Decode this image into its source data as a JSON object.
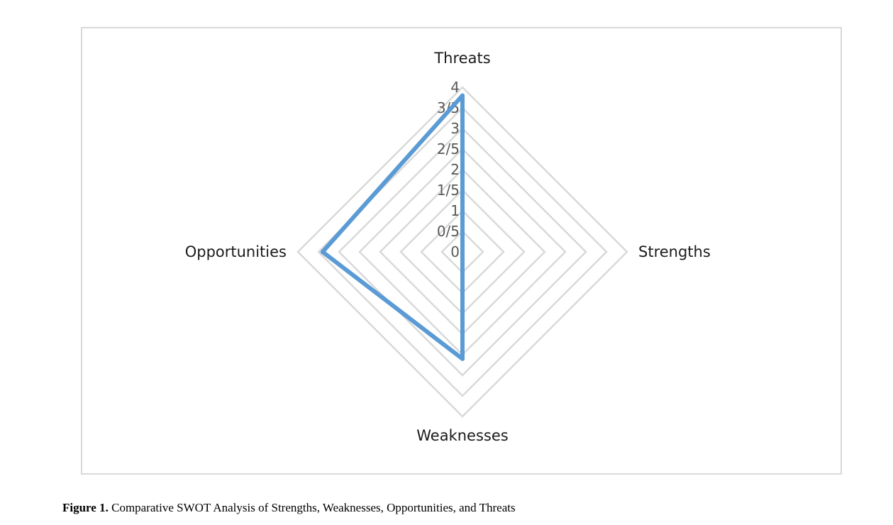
{
  "chart_data": {
    "type": "radar",
    "categories": [
      "Threats",
      "Strengths",
      "Weaknesses",
      "Opportunities"
    ],
    "series": [
      {
        "values": [
          3.8,
          0,
          2.6,
          3.4
        ],
        "color": "#5b9bd5"
      }
    ],
    "rlim": [
      0,
      4
    ],
    "ticks": [
      {
        "value": 0,
        "label": "0"
      },
      {
        "value": 0.5,
        "label": "0/5"
      },
      {
        "value": 1,
        "label": "1"
      },
      {
        "value": 1.5,
        "label": "1/5"
      },
      {
        "value": 2,
        "label": "2"
      },
      {
        "value": 2.5,
        "label": "2/5"
      },
      {
        "value": 3,
        "label": "3"
      },
      {
        "value": 3.5,
        "label": "3/5"
      },
      {
        "value": 4,
        "label": "4"
      }
    ],
    "grid": true,
    "gridColor": "#d9d9d9"
  },
  "caption": {
    "label": "Figure 1.",
    "text": " Comparative SWOT Analysis of Strengths, Weaknesses, Opportunities, and Threats"
  }
}
